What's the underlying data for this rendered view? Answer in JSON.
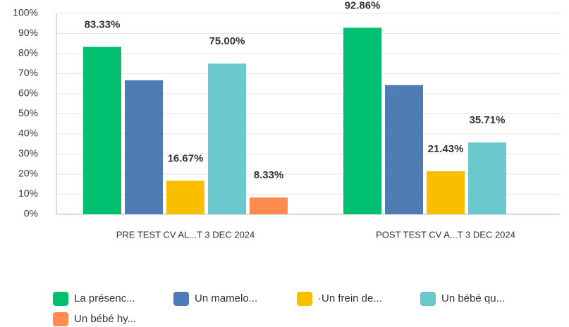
{
  "chart_data": {
    "type": "bar",
    "categories": [
      "PRE TEST CV AL...T 3 DEC 2024",
      "POST TEST CV A...T 3 DEC 2024"
    ],
    "series": [
      {
        "name": "La présenc...",
        "color": "#00bf6f",
        "values": [
          83.33,
          92.86
        ],
        "value_labels": [
          "83.33%",
          "92.86%"
        ]
      },
      {
        "name": "Un mamelo...",
        "color": "#507cb6",
        "values": [
          66.67,
          64.29
        ],
        "value_labels": [
          null,
          null
        ]
      },
      {
        "name": "·Un frein de...",
        "color": "#f9be00",
        "values": [
          16.67,
          21.43
        ],
        "value_labels": [
          "16.67%",
          "21.43%"
        ]
      },
      {
        "name": "Un bébé qu...",
        "color": "#6bc8cd",
        "values": [
          75.0,
          35.71
        ],
        "value_labels": [
          "75.00%",
          "35.71%"
        ]
      },
      {
        "name": "Un bébé hy...",
        "color": "#ff8b4f",
        "values": [
          8.33,
          0
        ],
        "value_labels": [
          "8.33%",
          null
        ]
      }
    ],
    "ylim": [
      0,
      100
    ],
    "yticks": [
      {
        "value": 0,
        "label": "0%"
      },
      {
        "value": 10,
        "label": "10%"
      },
      {
        "value": 20,
        "label": "20%"
      },
      {
        "value": 30,
        "label": "30%"
      },
      {
        "value": 40,
        "label": "40%"
      },
      {
        "value": 50,
        "label": "50%"
      },
      {
        "value": 60,
        "label": "60%"
      },
      {
        "value": 70,
        "label": "70%"
      },
      {
        "value": 80,
        "label": "80%"
      },
      {
        "value": 90,
        "label": "90%"
      },
      {
        "value": 100,
        "label": "100%"
      }
    ],
    "grid": true
  }
}
